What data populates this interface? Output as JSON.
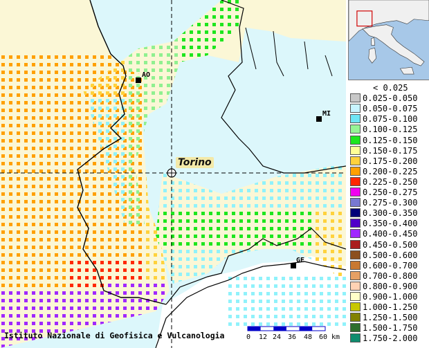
{
  "cities": {
    "aosta": "AO",
    "milano": "MI",
    "genova": "GE"
  },
  "focus_city": "Torino",
  "credit": "Istituto Nazionale di Geofisica e Vulcanologia",
  "scale": {
    "labels": [
      "0",
      "12",
      "24",
      "36",
      "48",
      "60",
      "km"
    ]
  },
  "legend": {
    "items": [
      {
        "label": "< 0.025",
        "color": "#ffffff"
      },
      {
        "label": "0.025-0.050",
        "color": "#c8c8c8"
      },
      {
        "label": "0.050-0.075",
        "color": "#c8f5ff"
      },
      {
        "label": "0.075-0.100",
        "color": "#6ee6f5"
      },
      {
        "label": "0.100-0.125",
        "color": "#96f596"
      },
      {
        "label": "0.125-0.150",
        "color": "#1ee61e"
      },
      {
        "label": "0.150-0.175",
        "color": "#ffff96"
      },
      {
        "label": "0.175-0.200",
        "color": "#ffd23c"
      },
      {
        "label": "0.200-0.225",
        "color": "#ffa000"
      },
      {
        "label": "0.225-0.250",
        "color": "#ff2800"
      },
      {
        "label": "0.250-0.275",
        "color": "#f000f0"
      },
      {
        "label": "0.275-0.300",
        "color": "#7878d2"
      },
      {
        "label": "0.300-0.350",
        "color": "#000078"
      },
      {
        "label": "0.350-0.400",
        "color": "#5000c8"
      },
      {
        "label": "0.400-0.450",
        "color": "#a028ff"
      },
      {
        "label": "0.450-0.500",
        "color": "#aa1e1e"
      },
      {
        "label": "0.500-0.600",
        "color": "#8c501e"
      },
      {
        "label": "0.600-0.700",
        "color": "#c87832"
      },
      {
        "label": "0.700-0.800",
        "color": "#e6a064"
      },
      {
        "label": "0.800-0.900",
        "color": "#ffd2b4"
      },
      {
        "label": "0.900-1.000",
        "color": "#ffffc8"
      },
      {
        "label": "1.000-1.250",
        "color": "#c8c800"
      },
      {
        "label": "1.250-1.500",
        "color": "#828200"
      },
      {
        "label": "1.500-1.750",
        "color": "#2d6e2d"
      },
      {
        "label": "1.750-2.000",
        "color": "#0f8c6e"
      }
    ]
  },
  "colors": {
    "plain": "#dcf7fb",
    "alps": "#fbf7d6",
    "sea": "#ffffff",
    "cyan_grid": "#90f2fb",
    "green_grid": "#1ee61e",
    "lightgreen_grid": "#90f090",
    "orange_grid": "#ffa000",
    "yellow_grid": "#ffd23c",
    "red_grid": "#ff2800",
    "purple_grid": "#a028ff",
    "navy_grid": "#000078",
    "inset_sea": "#a7c8e8",
    "inset_land": "#f0f0f0"
  }
}
